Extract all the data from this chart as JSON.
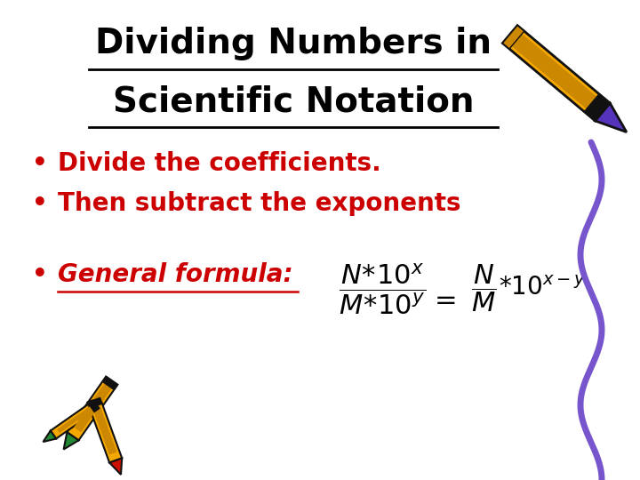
{
  "title_line1": "Dividing Numbers in",
  "title_line2": "Scientific Notation",
  "title_color": "#000000",
  "title_fontsize": 28,
  "bullet1": "Divide the coefficients.",
  "bullet2": "Then subtract the exponents",
  "bullet_color": "#cc0000",
  "bullet_fontsize": 20,
  "formula_label_color": "#cc0000",
  "formula_label_fontsize": 20,
  "bg_color": "#ffffff",
  "formula_color": "#000000",
  "formula_fontsize": 18,
  "wave_color": "#7755cc",
  "crayon_yellow": "#f5a800",
  "crayon_purple": "#5533bb",
  "crayon_dark": "#111111"
}
